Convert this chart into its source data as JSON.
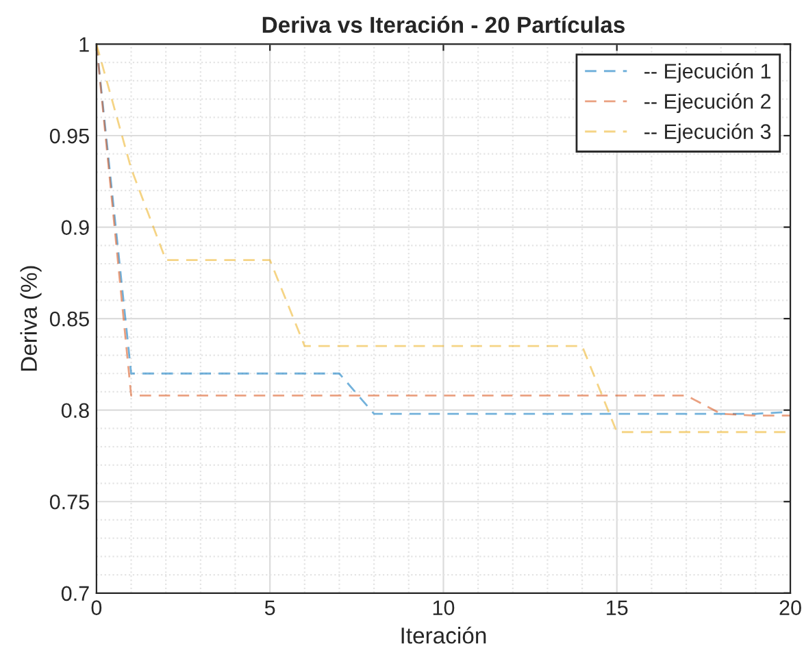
{
  "chart_data": {
    "type": "line",
    "title": "Deriva vs Iteración - 20 Partículas",
    "xlabel": "Iteración",
    "ylabel": "Deriva (%)",
    "x": [
      0,
      1,
      2,
      3,
      4,
      5,
      6,
      7,
      8,
      9,
      10,
      11,
      12,
      13,
      14,
      15,
      16,
      17,
      18,
      19,
      20
    ],
    "series": [
      {
        "name": "-- Ejecución 1",
        "color": "#0072bd",
        "values": [
          1,
          0.82,
          0.82,
          0.82,
          0.82,
          0.82,
          0.82,
          0.82,
          0.798,
          0.798,
          0.798,
          0.798,
          0.798,
          0.798,
          0.798,
          0.798,
          0.798,
          0.798,
          0.798,
          0.798,
          0.799
        ]
      },
      {
        "name": "-- Ejecución 2",
        "color": "#d95319",
        "values": [
          1,
          0.808,
          0.808,
          0.808,
          0.808,
          0.808,
          0.808,
          0.808,
          0.808,
          0.808,
          0.808,
          0.808,
          0.808,
          0.808,
          0.808,
          0.808,
          0.808,
          0.808,
          0.798,
          0.797,
          0.797
        ]
      },
      {
        "name": "-- Ejecución 3",
        "color": "#edb120",
        "values": [
          1,
          0.932,
          0.882,
          0.882,
          0.882,
          0.882,
          0.835,
          0.835,
          0.835,
          0.835,
          0.835,
          0.835,
          0.835,
          0.835,
          0.835,
          0.788,
          0.788,
          0.788,
          0.788,
          0.788,
          0.788
        ]
      }
    ],
    "xlim": [
      0,
      20
    ],
    "xticks": [
      0,
      5,
      10,
      15,
      20
    ],
    "ylim": [
      0.7,
      1
    ],
    "yticks": [
      0.7,
      0.75,
      0.8,
      0.85,
      0.9,
      0.95,
      1
    ],
    "grid": true,
    "legend": "top right",
    "line_style": "dashed",
    "marker": "none"
  }
}
